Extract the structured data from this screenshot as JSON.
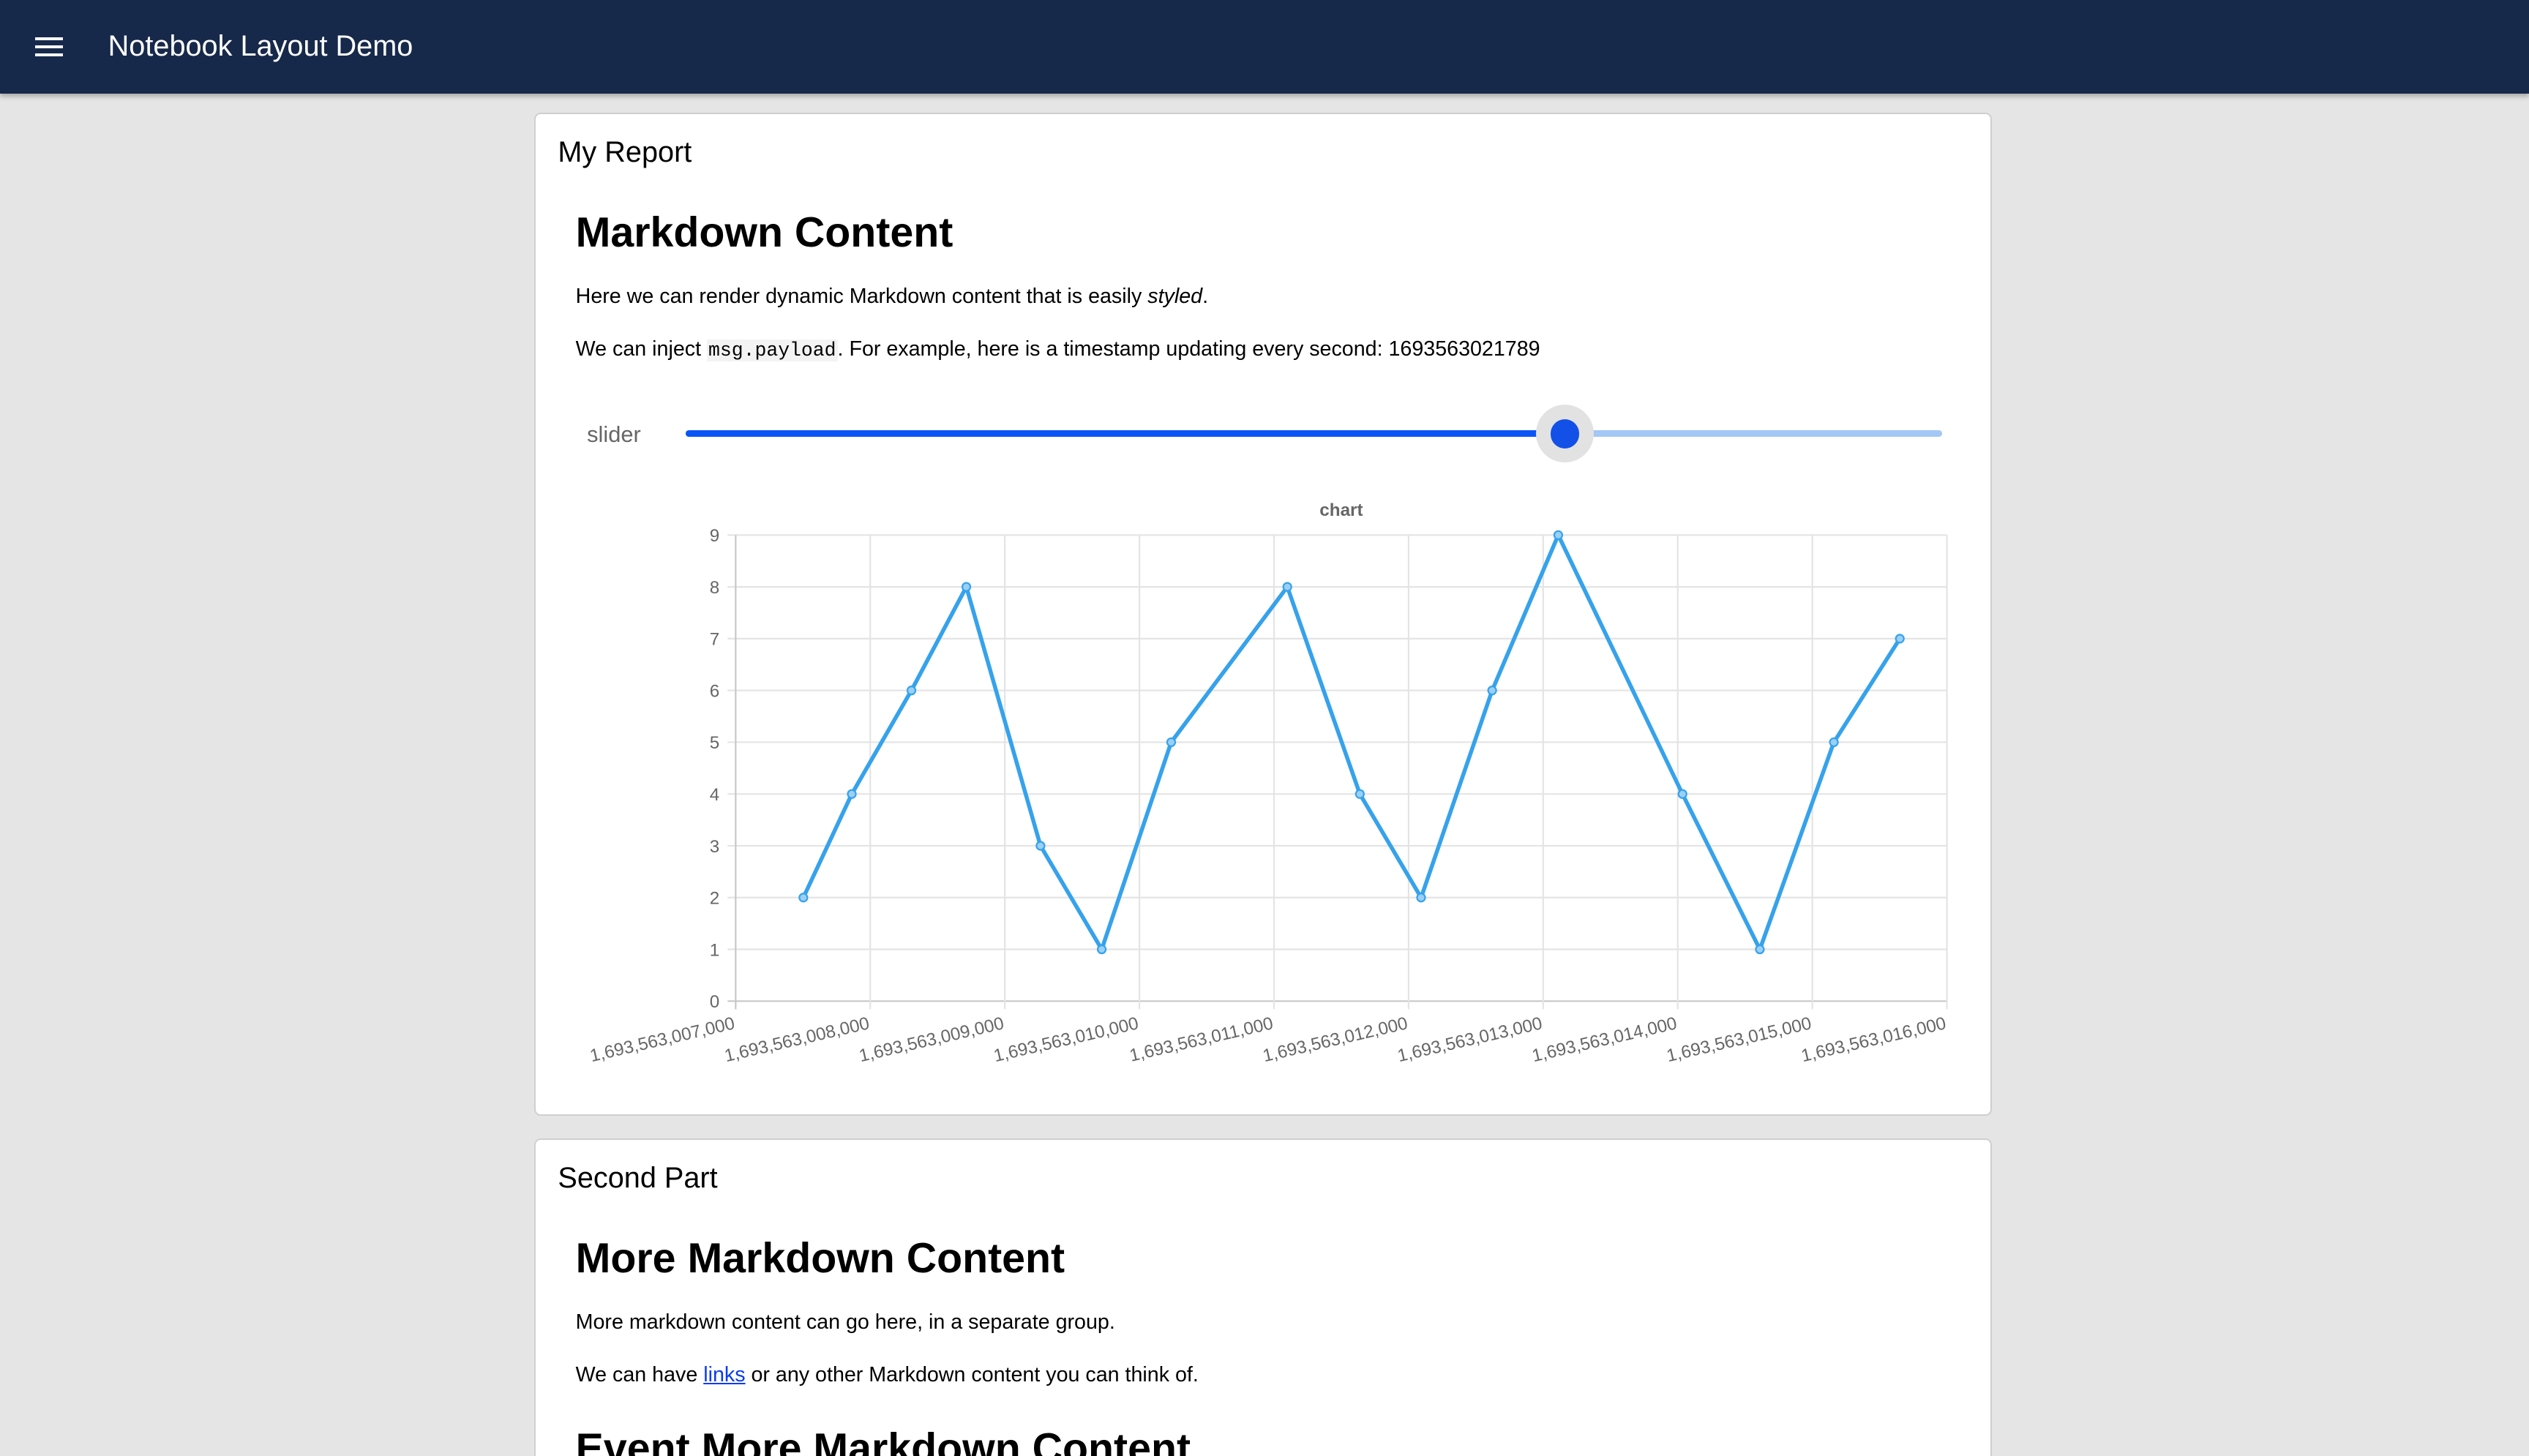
{
  "header": {
    "title": "Notebook Layout Demo",
    "menu_icon": "hamburger-menu-icon"
  },
  "card1": {
    "title": "My Report",
    "heading": "Markdown Content",
    "p1_before": "Here we can render dynamic Markdown content that is easily ",
    "p1_em": "styled",
    "p1_after": ".",
    "p2_before": "We can inject ",
    "p2_code": "msg.payload",
    "p2_after": ". For example, here is a timestamp updating every second: 1693563021789",
    "slider": {
      "label": "slider",
      "value_fraction": 0.7,
      "fill_color": "#0a55f5",
      "track_color": "#a3c8f5"
    }
  },
  "chart_data": {
    "type": "line",
    "title": "chart",
    "x": [
      1693563007503,
      1693563007863,
      1693563008306,
      1693563008714,
      1693563009265,
      1693563009720,
      1693563010236,
      1693563011099,
      1693563011638,
      1693563012093,
      1693563012621,
      1693563013112,
      1693563014035,
      1693563014610,
      1693563015160,
      1693563015650
    ],
    "y": [
      2,
      4,
      6,
      8,
      3,
      1,
      5,
      8,
      4,
      2,
      6,
      9,
      4,
      1,
      5,
      7
    ],
    "xlim": [
      1693563007000,
      1693563016000
    ],
    "ylim": [
      0,
      9
    ],
    "xticks": [
      "1,693,563,007,000",
      "1,693,563,008,000",
      "1,693,563,009,000",
      "1,693,563,010,000",
      "1,693,563,011,000",
      "1,693,563,012,000",
      "1,693,563,013,000",
      "1,693,563,014,000",
      "1,693,563,015,000",
      "1,693,563,016,000"
    ],
    "yticks": [
      "0",
      "1",
      "2",
      "3",
      "4",
      "5",
      "6",
      "7",
      "8",
      "9"
    ],
    "grid": true,
    "line_color": "#36a2eb"
  },
  "card2": {
    "title": "Second Part",
    "heading": "More Markdown Content",
    "p1": "More markdown content can go here, in a separate group.",
    "p2_before": "We can have ",
    "p2_link": "links",
    "p2_after": " or any other Markdown content you can think of.",
    "heading2": "Event More Markdown Content"
  }
}
